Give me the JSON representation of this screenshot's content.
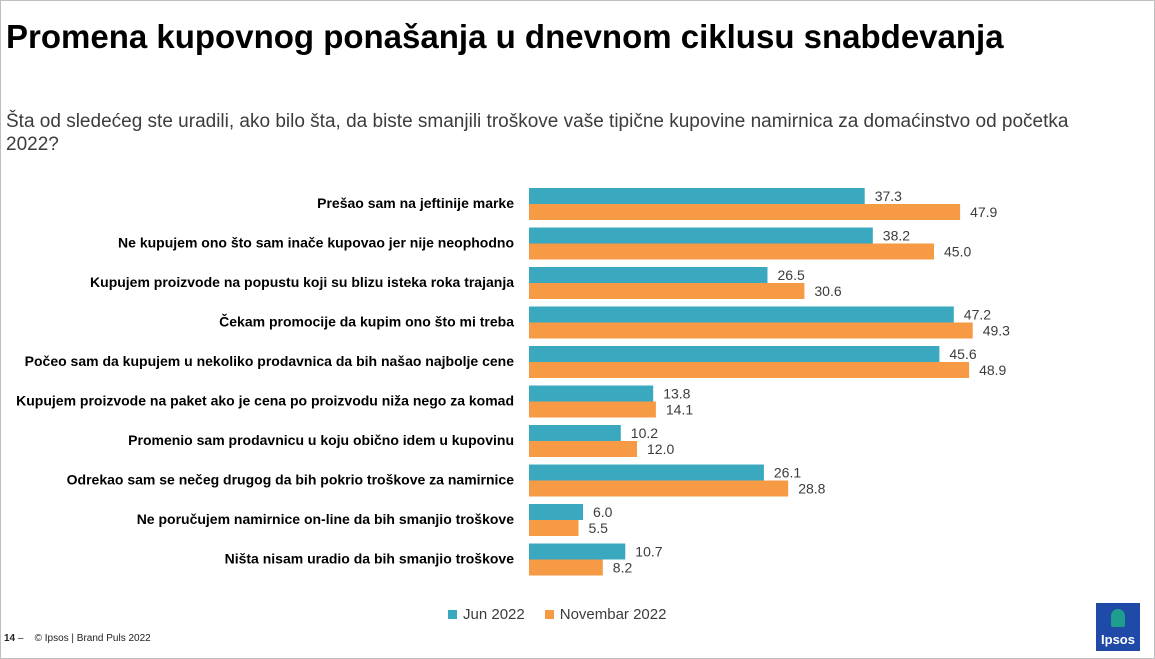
{
  "header": {
    "title": "Promena kupovnog ponašanja u dnevnom ciklusu snabdevanja",
    "subtitle": "Šta od sledećeg ste uradili, ako bilo šta, da biste smanjili troškove vaše tipične kupovine namirnica za domaćinstvo od početka 2022?"
  },
  "footer": {
    "page": "14",
    "separator": "–",
    "copyright": "© Ipsos | Brand Puls 2022"
  },
  "logo": {
    "text": "Ipsos"
  },
  "colors": {
    "series1": "#3aa9bf",
    "series2": "#f79a45"
  },
  "chart_data": {
    "type": "bar",
    "orientation": "horizontal",
    "categories": [
      "Prešao sam na jeftinije marke",
      "Ne kupujem ono što sam inače kupovao jer nije neophodno",
      "Kupujem proizvode na popustu koji su blizu isteka roka trajanja",
      "Čekam promocije da kupim ono što mi treba",
      "Počeo sam da kupujem u nekoliko prodavnica da bih našao najbolje cene",
      "Kupujem proizvode na paket ako je cena po proizvodu niža  nego za komad",
      "Promenio sam prodavnicu u koju obično idem u kupovinu",
      "Odrekao sam se nečeg  drugog da bih pokrio troškove za namirnice",
      "Ne poručujem namirnice on-line da bih smanjio troškove",
      "Ništa nisam uradio da bih smanjio troškove"
    ],
    "series": [
      {
        "name": "Jun 2022",
        "values": [
          37.3,
          38.2,
          26.5,
          47.2,
          45.6,
          13.8,
          10.2,
          26.1,
          6.0,
          10.7
        ],
        "labels": [
          "37.3",
          "38.2",
          "26.5",
          "47.2",
          "45.6",
          "13.8",
          "10.2",
          "26.1",
          "6.0",
          "10.7"
        ]
      },
      {
        "name": "Novembar 2022",
        "values": [
          47.9,
          45.0,
          30.6,
          49.3,
          48.9,
          14.1,
          12.0,
          28.8,
          5.5,
          8.2
        ],
        "labels": [
          "47.9",
          "45.0",
          "30.6",
          "49.3",
          "48.9",
          "14.1",
          "12.0",
          "28.8",
          "5.5",
          "8.2"
        ]
      }
    ],
    "xlim": [
      0,
      50
    ],
    "grid": false,
    "legend_position": "bottom"
  }
}
